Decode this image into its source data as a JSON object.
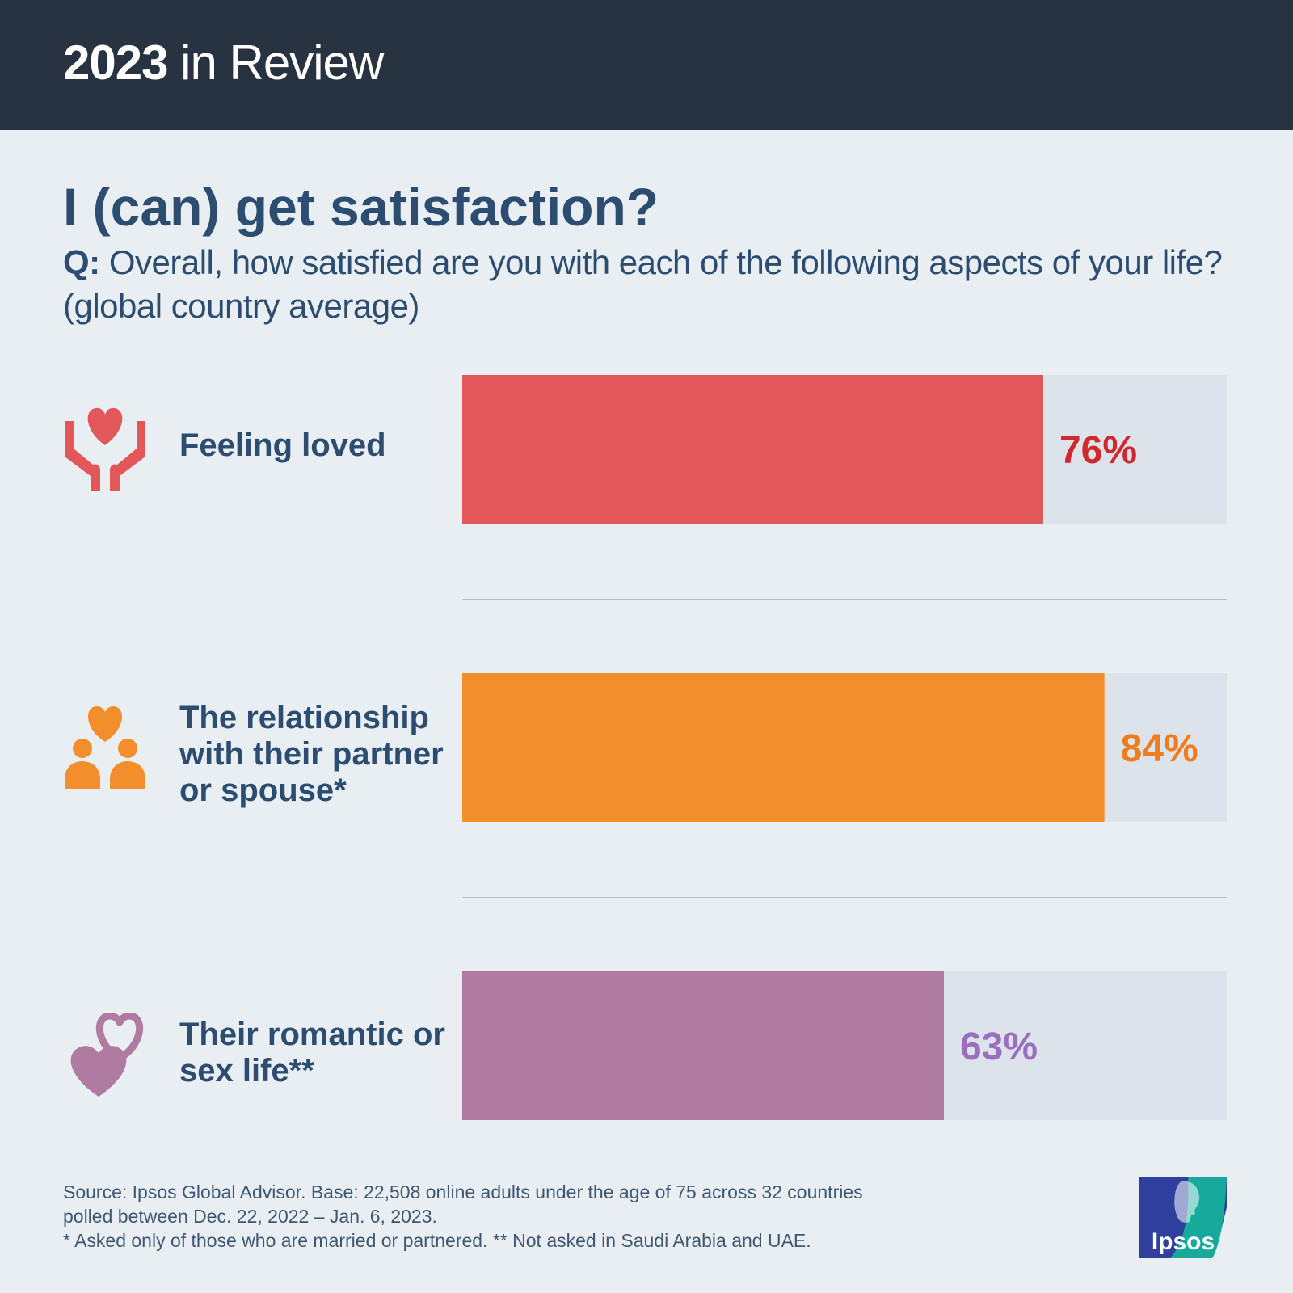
{
  "header": {
    "year": "2023",
    "title_rest": "in Review"
  },
  "headline": "I (can) get satisfaction?",
  "question": {
    "label": "Q:",
    "text": "Overall, how satisfied are you with each of the following aspects of your life? (global country average)"
  },
  "chart_data": {
    "type": "bar",
    "orientation": "horizontal",
    "title": "I (can) get satisfaction?",
    "categories": [
      "Feeling loved",
      "The relationship with their partner or spouse*",
      "Their romantic or sex life**"
    ],
    "values": [
      76,
      84,
      63
    ],
    "value_labels": [
      "76%",
      "84%",
      "63%"
    ],
    "xlim": [
      0,
      100
    ],
    "units": "%",
    "colors": [
      "#e2575a",
      "#f28e2c",
      "#b07ba1"
    ],
    "label_colors": [
      "#d0282d",
      "#f07c1c",
      "#9b6fbf"
    ],
    "track_color": "#dde3ea"
  },
  "rows": [
    {
      "icon": "hands-heart-icon",
      "label_lines": [
        "Feeling loved"
      ]
    },
    {
      "icon": "couple-heart-icon",
      "label_lines": [
        "The relationship",
        "with their partner",
        "or spouse*"
      ]
    },
    {
      "icon": "two-hearts-icon",
      "label_lines": [
        "Their romantic or",
        "sex life**"
      ]
    }
  ],
  "footnote": {
    "line1": "Source: Ipsos Global Advisor. Base: 22,508 online adults under the age of 75 across 32 countries",
    "line2": "polled between Dec. 22, 2022 – Jan. 6, 2023.",
    "line3": "* Asked only of those who are married or partnered. ** Not asked in Saudi Arabia and UAE."
  },
  "logo": {
    "text": "Ipsos",
    "primary_color": "#2e3f9e",
    "secondary_color": "#17a99c"
  }
}
